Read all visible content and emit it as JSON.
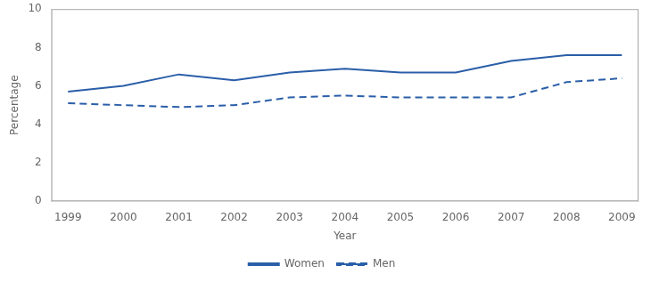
{
  "chart_data": {
    "type": "line",
    "x": [
      1999,
      2000,
      2001,
      2002,
      2003,
      2004,
      2005,
      2006,
      2007,
      2008,
      2009
    ],
    "xlabel": "Year",
    "ylabel": "Percentage",
    "xlim": [
      1998.7,
      2009.3
    ],
    "xticks": [
      1999,
      2000,
      2001,
      2002,
      2003,
      2004,
      2005,
      2006,
      2007,
      2008,
      2009
    ],
    "ylim": [
      0,
      10
    ],
    "yticks": [
      0,
      2,
      4,
      6,
      8,
      10
    ],
    "grid": false,
    "legend": "bottom",
    "series": [
      {
        "name": "Women",
        "color": "#2a5ea8",
        "line_style": "solid",
        "values": [
          5.7,
          6.0,
          6.6,
          6.3,
          6.7,
          6.9,
          6.7,
          6.7,
          7.3,
          7.6,
          7.6
        ]
      },
      {
        "name": "Men",
        "color": "#2a5ea8",
        "line_style": "dashed",
        "values": [
          5.1,
          5.0,
          4.9,
          5.0,
          5.4,
          5.5,
          5.4,
          5.4,
          5.4,
          6.2,
          6.4
        ]
      }
    ]
  }
}
